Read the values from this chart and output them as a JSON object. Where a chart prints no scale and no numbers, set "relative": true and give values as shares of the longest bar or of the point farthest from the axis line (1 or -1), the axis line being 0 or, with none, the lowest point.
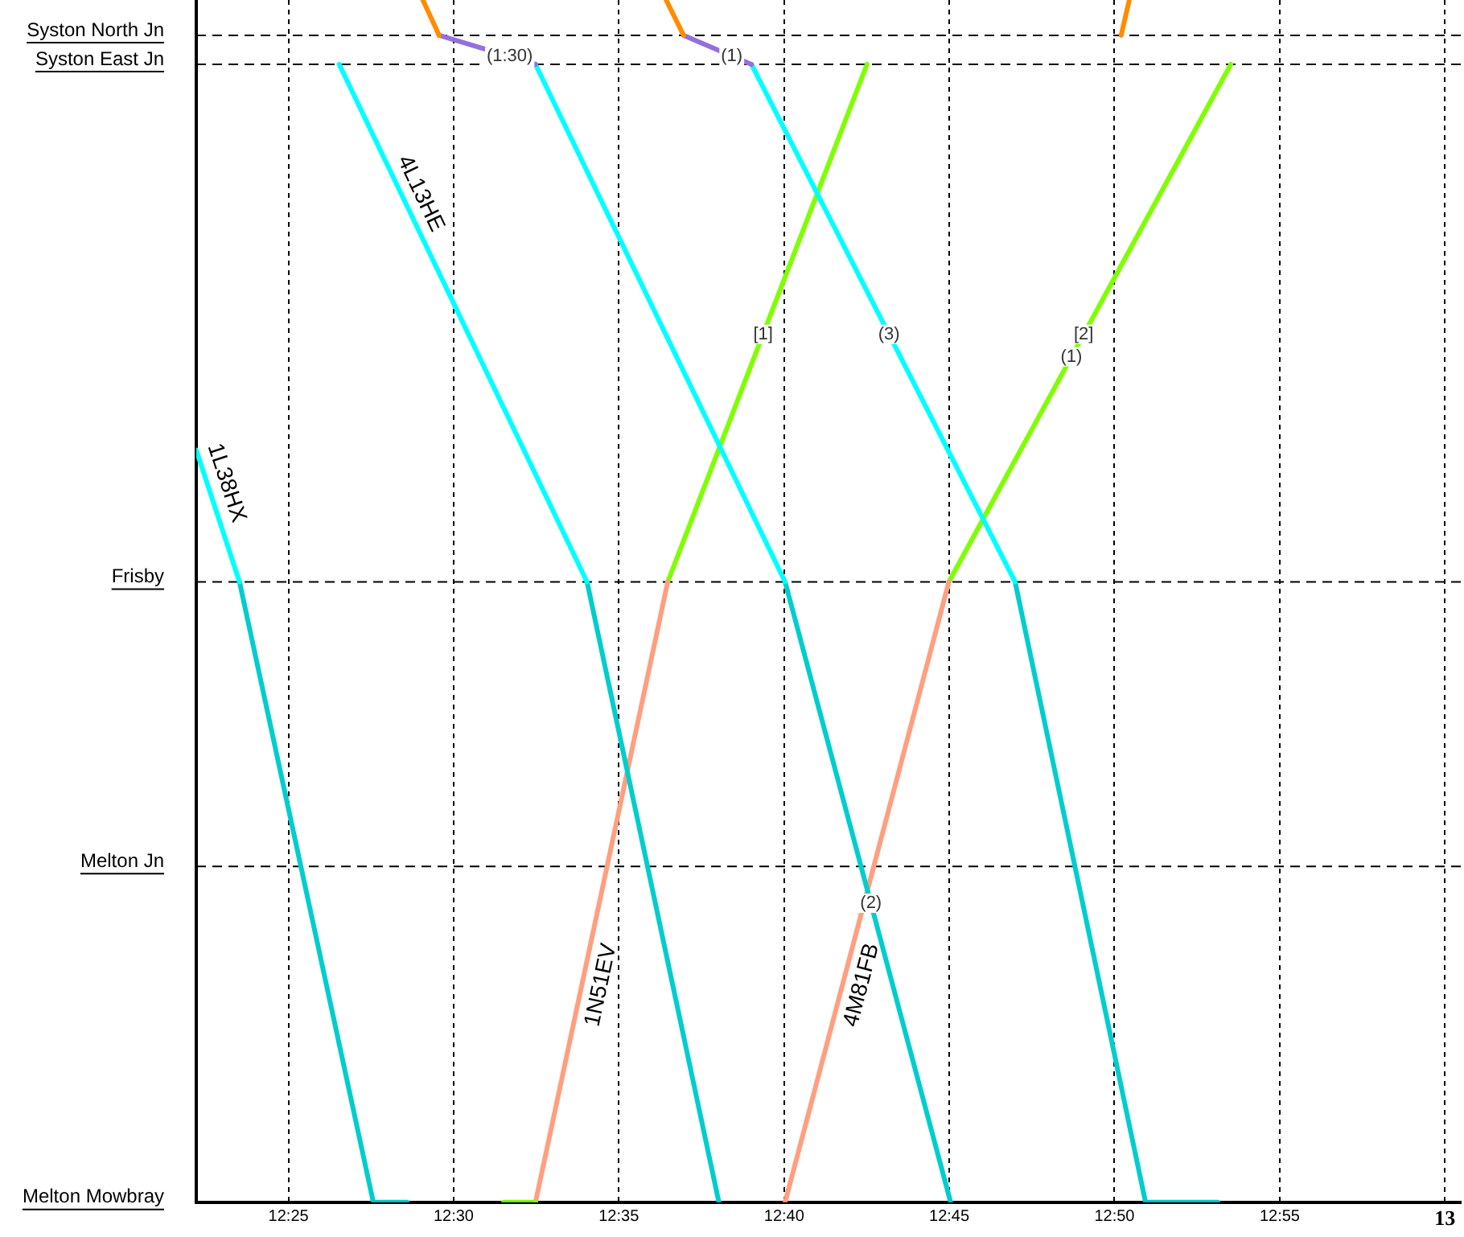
{
  "chart_data": {
    "type": "line",
    "relative": true,
    "grid": "x",
    "legend": false,
    "marker": "none",
    "line_style": "solid",
    "xlim": [
      12.3702,
      13.008
    ],
    "xticks": [
      {
        "value": 12.4167,
        "label": "12:25"
      },
      {
        "value": 12.5,
        "label": "12:30"
      },
      {
        "value": 12.5833,
        "label": "12:35"
      },
      {
        "value": 12.6667,
        "label": "12:40"
      },
      {
        "value": 12.75,
        "label": "12:45"
      },
      {
        "value": 12.8333,
        "label": "12:50"
      },
      {
        "value": 12.9167,
        "label": "12:55"
      },
      {
        "value": 13,
        "label": "13"
      }
    ],
    "ref_lines": [
      {
        "axis": "y",
        "value": 0.9706,
        "label": "Syston North Jn",
        "color": "#000000",
        "line_style": "dashed"
      },
      {
        "axis": "y",
        "value": 0.9465,
        "label": "Syston East Jn",
        "color": "#000000",
        "line_style": "dashed"
      },
      {
        "axis": "y",
        "value": 0.516,
        "label": "Frisby",
        "color": "#000000",
        "line_style": "dashed"
      },
      {
        "axis": "y",
        "value": 0.2794,
        "label": "Melton Jn",
        "color": "#000000",
        "line_style": "dashed"
      }
    ],
    "series": [
      {
        "name": "1L38HX",
        "color": "#00ffff",
        "x": [
          12.3702,
          12.392
        ],
        "values": [
          0.6257,
          0.516
        ]
      },
      {
        "color": "#00cdcd",
        "x": [
          12.392,
          12.4595,
          12.4765
        ],
        "values": [
          0.516,
          0,
          0
        ]
      },
      {
        "name": "4L13HE",
        "color": "#00ffff",
        "x": [
          12.4423,
          12.5673
        ],
        "values": [
          0.9465,
          0.516
        ]
      },
      {
        "color": "#00cdcd",
        "x": [
          12.5673,
          12.6338
        ],
        "values": [
          0.516,
          0
        ]
      },
      {
        "color": "#ff8c00",
        "x": [
          12.4845,
          12.4927
        ],
        "values": [
          1,
          0.9706
        ]
      },
      {
        "color": "#9370db",
        "x": [
          12.4927,
          12.5413
        ],
        "values": [
          0.9706,
          0.9465
        ]
      },
      {
        "color": "#00ffff",
        "x": [
          12.5413,
          12.6672
        ],
        "values": [
          0.9465,
          0.516
        ]
      },
      {
        "color": "#00cdcd",
        "x": [
          12.6672,
          12.7507
        ],
        "values": [
          0.516,
          0
        ]
      },
      {
        "color": "#ff8c00",
        "x": [
          12.6072,
          12.616
        ],
        "values": [
          1,
          0.9706
        ]
      },
      {
        "color": "#9370db",
        "x": [
          12.616,
          12.6502
        ],
        "values": [
          0.9706,
          0.9465
        ]
      },
      {
        "color": "#00ffff",
        "x": [
          12.6502,
          12.7832
        ],
        "values": [
          0.9465,
          0.516
        ]
      },
      {
        "color": "#00cdcd",
        "x": [
          12.7832,
          12.849,
          12.8855
        ],
        "values": [
          0.516,
          0,
          0
        ]
      },
      {
        "color": "#ff8c00",
        "x": [
          12.8367,
          12.8408
        ],
        "values": [
          0.9706,
          1
        ]
      },
      {
        "color": "#7fff00",
        "x": [
          12.5252,
          12.5413
        ],
        "values": [
          0,
          0
        ]
      },
      {
        "name": "1N51EV",
        "color": "#ff9f80",
        "x": [
          12.5413,
          12.608
        ],
        "values": [
          0,
          0.516
        ]
      },
      {
        "color": "#7fff00",
        "x": [
          12.608,
          12.7085
        ],
        "values": [
          0.516,
          0.9465
        ]
      },
      {
        "name": "4M81FB",
        "color": "#ff9f80",
        "x": [
          12.6672,
          12.7498
        ],
        "values": [
          0,
          0.516
        ]
      },
      {
        "color": "#7fff00",
        "x": [
          12.7498,
          12.892
        ],
        "values": [
          0.516,
          0.9465
        ]
      }
    ],
    "annotations": [
      {
        "text": "(1:30)",
        "x": 12.5283,
        "y": 0.9529
      },
      {
        "text": "(1)",
        "x": 12.6403,
        "y": 0.9535
      },
      {
        "text": "[1]",
        "x": 12.6561,
        "y": 0.7219
      },
      {
        "text": "(3)",
        "x": 12.7196,
        "y": 0.7219
      },
      {
        "text": "[2]",
        "x": 12.8178,
        "y": 0.7219
      },
      {
        "text": "(1)",
        "x": 12.8116,
        "y": 0.7032
      },
      {
        "text": "(2)",
        "x": 12.7105,
        "y": 0.2487
      },
      "Melton Mowbray"
    ]
  }
}
